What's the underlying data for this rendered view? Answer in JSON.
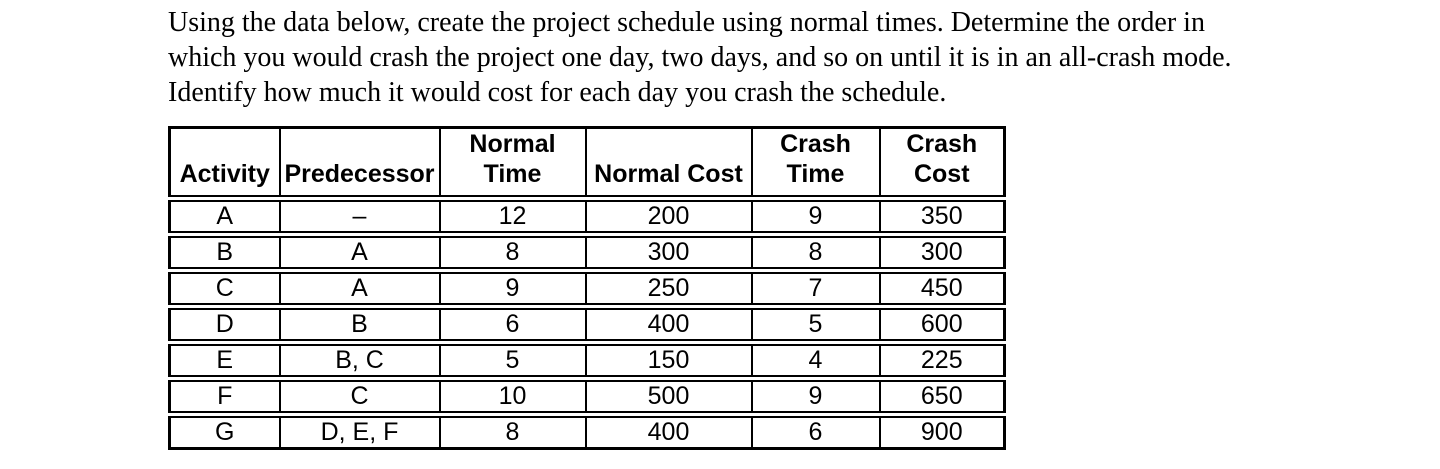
{
  "colors": {
    "background": "#ffffff",
    "text": "#000000",
    "table_border": "#000000"
  },
  "intro": {
    "lines": [
      "Using the data below, create the project schedule using normal times. Determine the order in",
      "which you would crash the project one day, two days, and so on until it is in an all-crash mode.",
      "Identify how much it would cost for each day you crash the schedule."
    ]
  },
  "table": {
    "headers": [
      {
        "line1": "",
        "line2": "Activity"
      },
      {
        "line1": "",
        "line2": "Predecessor"
      },
      {
        "line1": "Normal",
        "line2": "Time"
      },
      {
        "line1": "",
        "line2": "Normal Cost"
      },
      {
        "line1": "Crash",
        "line2": "Time"
      },
      {
        "line1": "Crash",
        "line2": "Cost"
      }
    ],
    "rows": [
      [
        "A",
        "–",
        "12",
        "200",
        "9",
        "350"
      ],
      [
        "B",
        "A",
        "8",
        "300",
        "8",
        "300"
      ],
      [
        "C",
        "A",
        "9",
        "250",
        "7",
        "450"
      ],
      [
        "D",
        "B",
        "6",
        "400",
        "5",
        "600"
      ],
      [
        "E",
        "B, C",
        "5",
        "150",
        "4",
        "225"
      ],
      [
        "F",
        "C",
        "10",
        "500",
        "9",
        "650"
      ],
      [
        "G",
        "D, E, F",
        "8",
        "400",
        "6",
        "900"
      ]
    ]
  }
}
